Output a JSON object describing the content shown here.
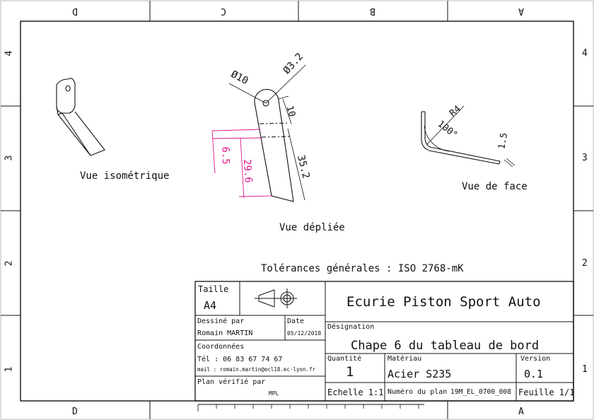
{
  "zones": {
    "columns_top": [
      "D",
      "C",
      "B",
      "A"
    ],
    "columns_bottom": [
      "D",
      "A"
    ],
    "rows": [
      "4",
      "3",
      "2",
      "1"
    ]
  },
  "views": {
    "iso": "Vue isométrique",
    "unfolded": "Vue dépliée",
    "front": "Vue de face"
  },
  "dimensions": {
    "d10": "Ø10",
    "d32": "Ø3.2",
    "len10": "10",
    "len352": "35.2",
    "len65": "6.5",
    "len296": "29.6",
    "radius": "R4",
    "angle": "100°",
    "thickness": "1.5"
  },
  "tolerances": "Tolérances générales : ISO 2768-mK",
  "title_block": {
    "size_label": "Taille",
    "size_value": "A4",
    "drawn_by_label": "Dessiné par",
    "drawn_by_value": "Romain MARTIN",
    "date_label": "Date",
    "date_value": "05/12/2018",
    "contacts_label": "Coordonnées",
    "phone": "Tél : 06 83 67 74 67",
    "mail": "mail : romain.martin@ecl18.ec-lyon.fr",
    "checked_label": "Plan vérifié par",
    "checked_value": "MPL",
    "company": "Ecurie Piston Sport Auto",
    "designation_label": "Désignation",
    "designation_value": "Chape 6 du tableau de bord",
    "quantity_label": "Quantité",
    "quantity_value": "1",
    "material_label": "Matériau",
    "material_value": "Acier S235",
    "version_label": "Version",
    "version_value": "0.1",
    "scale": "Echelle 1:1",
    "plan_label": "Numéro du plan",
    "plan_value": "19M_EL_0700_008",
    "sheet": "Feuille 1/1"
  },
  "colors": {
    "line": "#111111",
    "dimension": "#111111",
    "highlight": "#e0188c"
  }
}
